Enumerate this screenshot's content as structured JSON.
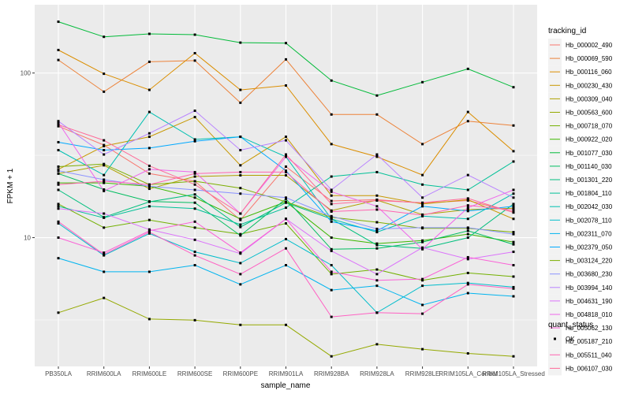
{
  "chart_data": {
    "type": "line",
    "xlabel": "sample_name",
    "ylabel": "FPKM + 1",
    "y_scale": "log10",
    "ylim": [
      1.65,
      260
    ],
    "y_ticks": [
      10,
      100
    ],
    "y_tick_labels": [
      "10",
      "100"
    ],
    "grid": true,
    "panel_background": "#ebebeb",
    "grid_color": "#ffffff",
    "categories": [
      "PB350LA",
      "RRIM600LA",
      "RRIM600LE",
      "RRIM600SE",
      "RRIM600PE",
      "RRIM901LA",
      "RRIM928BA",
      "RRIM928LA",
      "RRIM928LE",
      "RRIM105LA_Control",
      "RRIM105LA_Stressed"
    ],
    "legend": {
      "title": "tracking_id",
      "position": "right"
    },
    "shape_legend": {
      "title": "quant_status",
      "items": [
        "OK"
      ]
    },
    "series": [
      {
        "name": "Hb_000002_490",
        "color": "#F8766D",
        "values": [
          47.5,
          36.5,
          24.5,
          22.0,
          12.8,
          27.0,
          16.7,
          17.0,
          16.2,
          16.8,
          14.3
        ]
      },
      {
        "name": "Hb_000069_590",
        "color": "#EC8239",
        "values": [
          120,
          77,
          117,
          119,
          66,
          121,
          56,
          56,
          37,
          51,
          48
        ]
      },
      {
        "name": "Hb_000116_060",
        "color": "#DB8E00",
        "values": [
          138,
          99,
          79,
          132,
          79,
          84,
          37,
          31,
          24,
          58,
          33.5
        ]
      },
      {
        "name": "Hb_000230_430",
        "color": "#C79800",
        "values": [
          26,
          36,
          41,
          54,
          27.5,
          41,
          18,
          18,
          16,
          17,
          13
        ]
      },
      {
        "name": "Hb_000309_040",
        "color": "#AFA100",
        "values": [
          24.5,
          27.5,
          19.8,
          23.5,
          23.9,
          23.9,
          14.6,
          16.9,
          13.8,
          14.8,
          15.1
        ]
      },
      {
        "name": "Hb_000563_600",
        "color": "#94A900",
        "values": [
          3.5,
          4.3,
          3.2,
          3.15,
          2.95,
          2.95,
          1.9,
          2.25,
          2.1,
          1.98,
          1.9
        ]
      },
      {
        "name": "Hb_000718_070",
        "color": "#72B000",
        "values": [
          16,
          11.5,
          12.8,
          11.5,
          10.5,
          12.2,
          6.0,
          6.4,
          5.5,
          6.1,
          5.8
        ]
      },
      {
        "name": "Hb_000922_020",
        "color": "#3DB700",
        "values": [
          21.5,
          21.5,
          20.5,
          17.5,
          13.0,
          16.5,
          10.0,
          9.2,
          9.6,
          10.5,
          9.4
        ]
      },
      {
        "name": "Hb_001077_030",
        "color": "#00BA38",
        "values": [
          205,
          166,
          173,
          171,
          153,
          152,
          90,
          73,
          88,
          106,
          82
        ]
      },
      {
        "name": "Hb_001140_030",
        "color": "#00BD5F",
        "values": [
          24.5,
          19.6,
          16.6,
          16.3,
          10.3,
          17.2,
          8.5,
          8.6,
          9.4,
          11.0,
          9.1
        ]
      },
      {
        "name": "Hb_001301_220",
        "color": "#00BF7D",
        "values": [
          19.5,
          13.3,
          16.5,
          18.3,
          11.6,
          16.3,
          13.0,
          9.0,
          8.6,
          10.0,
          16.0
        ]
      },
      {
        "name": "Hb_001804_110",
        "color": "#00C097",
        "values": [
          15.5,
          13.2,
          15.5,
          15.0,
          12.0,
          15.2,
          23.5,
          25.0,
          21.0,
          19.5,
          29.0
        ]
      },
      {
        "name": "Hb_002042_030",
        "color": "#00C0B1",
        "values": [
          34,
          24,
          58,
          39.5,
          41,
          31,
          13.0,
          10.8,
          13.5,
          13.0,
          18.5
        ]
      },
      {
        "name": "Hb_002078_110",
        "color": "#00BDCB",
        "values": [
          12.2,
          7.8,
          10.6,
          8.2,
          7.0,
          9.8,
          6.8,
          3.5,
          5.1,
          5.3,
          5.0
        ]
      },
      {
        "name": "Hb_002311_070",
        "color": "#00B4EF",
        "values": [
          7.5,
          6.2,
          6.2,
          6.8,
          5.2,
          6.8,
          4.8,
          5.1,
          3.9,
          4.6,
          4.4
        ]
      },
      {
        "name": "Hb_002379_050",
        "color": "#00A9FF",
        "values": [
          38,
          34,
          35,
          38.5,
          41,
          25.5,
          12.5,
          11.0,
          15.5,
          14.5,
          15.5
        ]
      },
      {
        "name": "Hb_003124_220",
        "color": "#7CAE00",
        "values": [
          27,
          28,
          21,
          22,
          20,
          16.5,
          13.3,
          12.4,
          11.4,
          11.4,
          10.8
        ]
      },
      {
        "name": "Hb_003680_230",
        "color": "#8B93FF",
        "values": [
          25.5,
          22.5,
          20.5,
          19.5,
          18.5,
          17.5,
          13.5,
          11.3,
          11.5,
          11.5,
          10.5
        ]
      },
      {
        "name": "Hb_003994_140",
        "color": "#B983FF",
        "values": [
          51,
          32,
          43,
          59,
          34,
          39,
          19.5,
          32,
          17.5,
          24,
          17.5
        ]
      },
      {
        "name": "Hb_004631_190",
        "color": "#DB72FB",
        "values": [
          15,
          14,
          11.2,
          9.7,
          8.0,
          13.0,
          8.3,
          6.0,
          8.7,
          7.4,
          8.2
        ]
      },
      {
        "name": "Hb_004818_010",
        "color": "#EF67EB",
        "values": [
          50,
          19.2,
          26.0,
          25.0,
          14.0,
          31.0,
          19.0,
          15.5,
          8.5,
          15.2,
          19.5
        ]
      },
      {
        "name": "Hb_005062_130",
        "color": "#FB61D7",
        "values": [
          10.0,
          8.1,
          11.0,
          12.5,
          8.1,
          13.0,
          6.2,
          5.5,
          5.6,
          7.6,
          6.8
        ]
      },
      {
        "name": "Hb_005187_210",
        "color": "#FF61C3",
        "values": [
          12.5,
          7.9,
          10.8,
          7.8,
          6.0,
          8.6,
          3.3,
          3.5,
          3.45,
          5.2,
          4.9
        ]
      },
      {
        "name": "Hb_005511_040",
        "color": "#FF64B0",
        "values": [
          21,
          22,
          21,
          24.5,
          25.0,
          25.0,
          14.4,
          14.8,
          13.7,
          15.7,
          14.7
        ]
      },
      {
        "name": "Hb_006107_030",
        "color": "#FF6A98",
        "values": [
          48.5,
          39,
          27.3,
          21.0,
          14.0,
          32.0,
          16.0,
          16.8,
          16.3,
          17.3,
          14.2
        ]
      }
    ]
  }
}
